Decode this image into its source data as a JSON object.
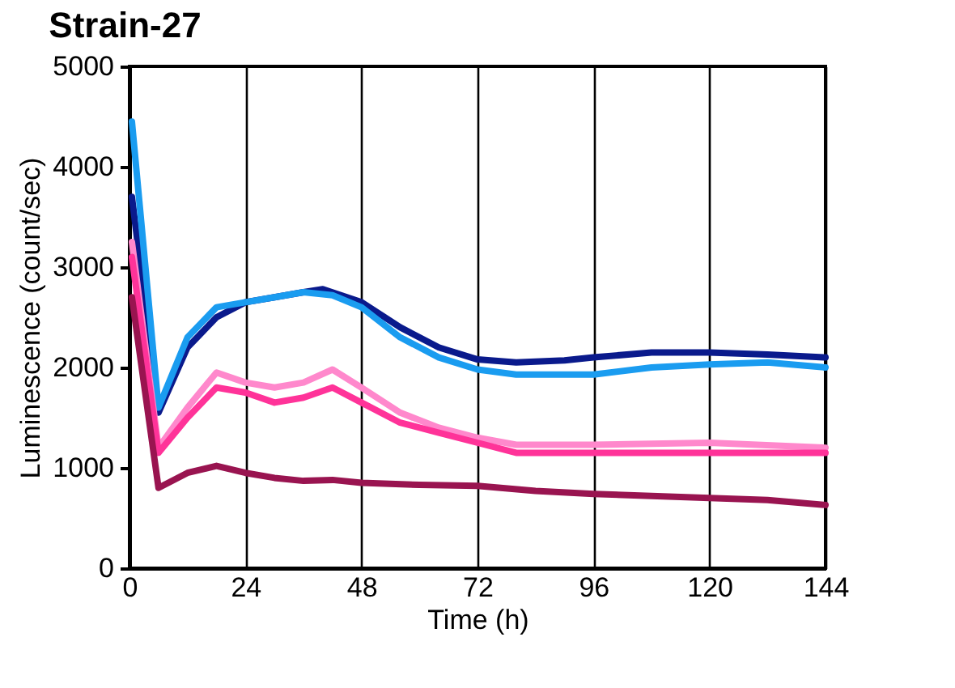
{
  "chart_data": {
    "type": "line",
    "title": "Strain-27",
    "xlabel": "Time (h)",
    "ylabel": "Luminescence (count/sec)",
    "xlim": [
      0,
      144
    ],
    "xticks": [
      0,
      24,
      48,
      72,
      96,
      120,
      144
    ],
    "ylim": [
      0,
      5000
    ],
    "yticks": [
      0,
      1000,
      2000,
      3000,
      4000,
      5000
    ],
    "grid": "x",
    "legend": false,
    "line_style": "solid",
    "marker": "none",
    "series": [
      {
        "color": "#0a1a8c",
        "x": [
          0.5,
          6,
          12,
          18,
          24,
          30,
          36,
          40,
          48,
          56,
          64,
          72,
          80,
          90,
          96,
          108,
          120,
          132,
          144
        ],
        "values": [
          3700,
          1550,
          2200,
          2500,
          2650,
          2700,
          2750,
          2780,
          2650,
          2400,
          2200,
          2080,
          2050,
          2070,
          2100,
          2150,
          2150,
          2130,
          2100
        ]
      },
      {
        "color": "#1a9cf0",
        "x": [
          0.5,
          6,
          12,
          18,
          24,
          30,
          36,
          42,
          48,
          56,
          64,
          72,
          80,
          96,
          108,
          120,
          132,
          144
        ],
        "values": [
          4450,
          1600,
          2300,
          2600,
          2650,
          2700,
          2750,
          2720,
          2600,
          2300,
          2100,
          1980,
          1930,
          1930,
          2000,
          2030,
          2050,
          2000
        ]
      },
      {
        "color": "#ff88cc",
        "x": [
          0.5,
          6,
          12,
          18,
          24,
          30,
          36,
          42,
          48,
          56,
          64,
          72,
          80,
          96,
          120,
          144
        ],
        "values": [
          3250,
          1200,
          1600,
          1950,
          1850,
          1800,
          1850,
          1980,
          1800,
          1550,
          1400,
          1300,
          1230,
          1230,
          1250,
          1200
        ]
      },
      {
        "color": "#ff3399",
        "x": [
          0.5,
          6,
          12,
          18,
          24,
          30,
          36,
          42,
          48,
          56,
          64,
          72,
          80,
          96,
          120,
          144
        ],
        "values": [
          3100,
          1150,
          1500,
          1800,
          1750,
          1650,
          1700,
          1800,
          1650,
          1450,
          1350,
          1250,
          1150,
          1150,
          1150,
          1150
        ]
      },
      {
        "color": "#991450",
        "x": [
          0.5,
          6,
          12,
          18,
          24,
          30,
          36,
          42,
          48,
          60,
          72,
          84,
          96,
          108,
          120,
          132,
          144
        ],
        "values": [
          2700,
          800,
          950,
          1020,
          950,
          900,
          870,
          880,
          850,
          830,
          820,
          770,
          740,
          720,
          700,
          680,
          630
        ]
      }
    ]
  }
}
